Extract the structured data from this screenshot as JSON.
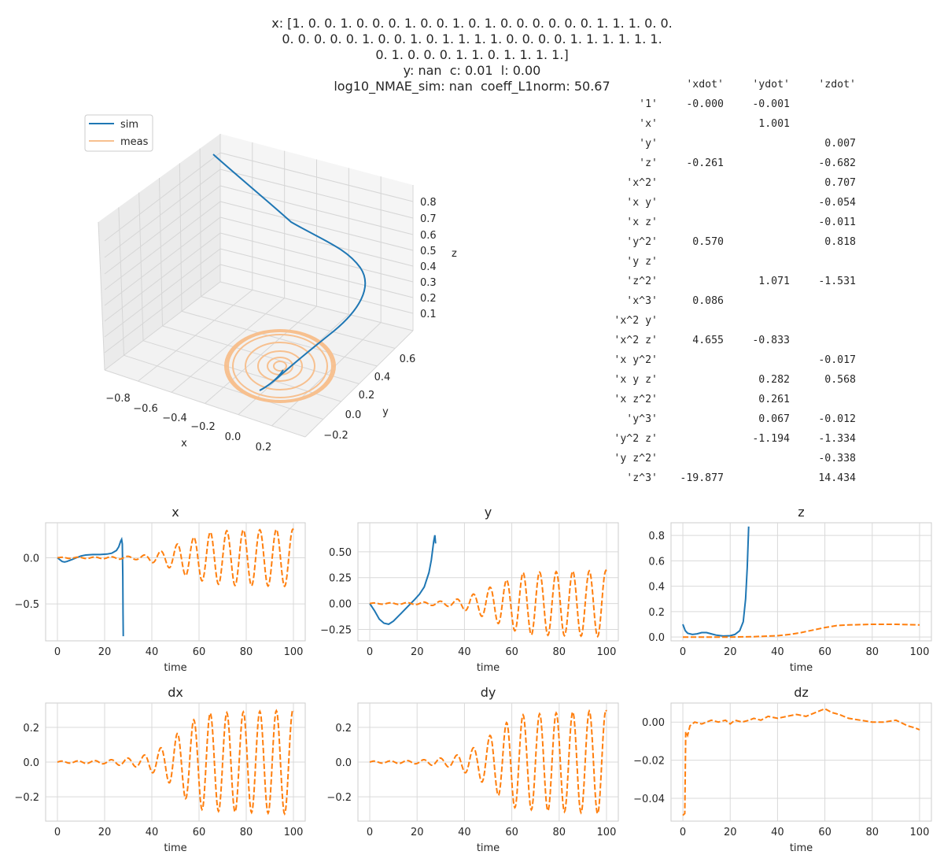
{
  "title": {
    "lines": [
      "x: [1. 0. 0. 1. 0. 0. 0. 1. 0. 0. 1. 0. 1. 0. 0. 0. 0. 0. 0. 1. 1. 1. 0. 0.",
      "0. 0. 0. 0. 0. 1. 0. 0. 1. 0. 1. 1. 1. 1. 0. 0. 0. 0. 1. 1. 1. 1. 1. 1.",
      "0. 1. 0. 0. 0. 1. 1. 0. 1. 1. 1. 1.]",
      "y: nan  c: 0.01  l: 0.00",
      "log10_NMAE_sim: nan  coeff_L1norm: 50.67"
    ]
  },
  "coef_table": {
    "columns": [
      "'xdot'",
      "'ydot'",
      "'zdot'"
    ],
    "rows": [
      {
        "term": "'1'",
        "vals": [
          "-0.000",
          "-0.001",
          ""
        ]
      },
      {
        "term": "'x'",
        "vals": [
          "",
          "1.001",
          ""
        ]
      },
      {
        "term": "'y'",
        "vals": [
          "",
          "",
          "0.007"
        ]
      },
      {
        "term": "'z'",
        "vals": [
          "-0.261",
          "",
          "-0.682"
        ]
      },
      {
        "term": "'x^2'",
        "vals": [
          "",
          "",
          "0.707"
        ]
      },
      {
        "term": "'x y'",
        "vals": [
          "",
          "",
          "-0.054"
        ]
      },
      {
        "term": "'x z'",
        "vals": [
          "",
          "",
          "-0.011"
        ]
      },
      {
        "term": "'y^2'",
        "vals": [
          "0.570",
          "",
          "0.818"
        ]
      },
      {
        "term": "'y z'",
        "vals": [
          "",
          "",
          ""
        ]
      },
      {
        "term": "'z^2'",
        "vals": [
          "",
          "1.071",
          "-1.531"
        ]
      },
      {
        "term": "'x^3'",
        "vals": [
          "0.086",
          "",
          ""
        ]
      },
      {
        "term": "'x^2 y'",
        "vals": [
          "",
          "",
          ""
        ]
      },
      {
        "term": "'x^2 z'",
        "vals": [
          "4.655",
          "-0.833",
          ""
        ]
      },
      {
        "term": "'x y^2'",
        "vals": [
          "",
          "",
          "-0.017"
        ]
      },
      {
        "term": "'x y z'",
        "vals": [
          "",
          "0.282",
          "0.568"
        ]
      },
      {
        "term": "'x z^2'",
        "vals": [
          "",
          "0.261",
          ""
        ]
      },
      {
        "term": "'y^3'",
        "vals": [
          "",
          "0.067",
          "-0.012"
        ]
      },
      {
        "term": "'y^2 z'",
        "vals": [
          "",
          "-1.194",
          "-1.334"
        ]
      },
      {
        "term": "'y z^2'",
        "vals": [
          "",
          "",
          "-0.338"
        ]
      },
      {
        "term": "'z^3'",
        "vals": [
          "-19.877",
          "",
          "14.434"
        ]
      }
    ]
  },
  "plot3d": {
    "legend": [
      "sim",
      "meas"
    ],
    "xlabel": "x",
    "ylabel": "y",
    "zlabel": "z",
    "xticks": [
      "−0.8",
      "−0.6",
      "−0.4",
      "−0.2",
      "0.0",
      "0.2"
    ],
    "yticks": [
      "−0.2",
      "0.0",
      "0.2",
      "0.4",
      "0.6"
    ],
    "zticks": [
      "0.1",
      "0.2",
      "0.3",
      "0.4",
      "0.5",
      "0.6",
      "0.7",
      "0.8"
    ]
  },
  "colors": {
    "sim": "#1f77b4",
    "meas": "#ff7f0e",
    "meas3d": "#f7c08f",
    "grid": "#d9d9d9"
  },
  "chart_data": [
    {
      "type": "line",
      "title": "x",
      "xlabel": "time",
      "ylabel": "",
      "xlim": [
        -5,
        105
      ],
      "ylim": [
        -0.9,
        0.38
      ],
      "xticks": [
        0,
        20,
        40,
        60,
        80,
        100
      ],
      "yticks": [
        -0.5,
        0.0
      ],
      "series": [
        {
          "name": "sim",
          "style": "solid",
          "points": [
            [
              0,
              0
            ],
            [
              1,
              -0.02
            ],
            [
              2,
              -0.04
            ],
            [
              3,
              -0.045
            ],
            [
              4,
              -0.04
            ],
            [
              6,
              -0.02
            ],
            [
              8,
              0.0
            ],
            [
              10,
              0.02
            ],
            [
              12,
              0.03
            ],
            [
              15,
              0.035
            ],
            [
              18,
              0.035
            ],
            [
              21,
              0.04
            ],
            [
              23,
              0.05
            ],
            [
              25,
              0.08
            ],
            [
              26,
              0.12
            ],
            [
              26.8,
              0.18
            ],
            [
              27.2,
              0.2
            ],
            [
              27.5,
              0.15
            ],
            [
              27.7,
              -0.2
            ],
            [
              27.8,
              -0.6
            ],
            [
              27.9,
              -0.85
            ]
          ]
        },
        {
          "name": "meas",
          "style": "dashed",
          "osc": {
            "t_end": 100,
            "base": 0.0,
            "period": 7,
            "amp": [
              [
                0,
                0.005
              ],
              [
                20,
                0.01
              ],
              [
                35,
                0.02
              ],
              [
                45,
                0.08
              ],
              [
                55,
                0.2
              ],
              [
                65,
                0.28
              ],
              [
                75,
                0.3
              ],
              [
                100,
                0.31
              ]
            ]
          }
        }
      ]
    },
    {
      "type": "line",
      "title": "y",
      "xlabel": "time",
      "ylabel": "",
      "xlim": [
        -5,
        105
      ],
      "ylim": [
        -0.36,
        0.78
      ],
      "xticks": [
        0,
        20,
        40,
        60,
        80,
        100
      ],
      "yticks": [
        -0.25,
        0.0,
        0.25,
        0.5
      ],
      "series": [
        {
          "name": "sim",
          "style": "solid",
          "points": [
            [
              0,
              0
            ],
            [
              2,
              -0.07
            ],
            [
              4,
              -0.15
            ],
            [
              6,
              -0.19
            ],
            [
              8,
              -0.2
            ],
            [
              10,
              -0.17
            ],
            [
              13,
              -0.1
            ],
            [
              16,
              -0.03
            ],
            [
              19,
              0.04
            ],
            [
              21,
              0.09
            ],
            [
              23,
              0.16
            ],
            [
              25,
              0.3
            ],
            [
              26,
              0.42
            ],
            [
              27,
              0.6
            ],
            [
              27.5,
              0.66
            ],
            [
              27.8,
              0.58
            ]
          ]
        },
        {
          "name": "meas",
          "style": "dashed",
          "osc": {
            "t_end": 100,
            "base": 0.0,
            "period": 7,
            "amp": [
              [
                0,
                0.005
              ],
              [
                20,
                0.01
              ],
              [
                35,
                0.03
              ],
              [
                45,
                0.1
              ],
              [
                55,
                0.2
              ],
              [
                65,
                0.3
              ],
              [
                100,
                0.32
              ]
            ]
          }
        }
      ]
    },
    {
      "type": "line",
      "title": "z",
      "xlabel": "time",
      "ylabel": "",
      "xlim": [
        -5,
        105
      ],
      "ylim": [
        -0.03,
        0.9
      ],
      "xticks": [
        0,
        20,
        40,
        60,
        80,
        100
      ],
      "yticks": [
        0.0,
        0.2,
        0.4,
        0.6,
        0.8
      ],
      "series": [
        {
          "name": "sim",
          "style": "solid",
          "points": [
            [
              0,
              0.1
            ],
            [
              1,
              0.05
            ],
            [
              2,
              0.03
            ],
            [
              4,
              0.02
            ],
            [
              6,
              0.025
            ],
            [
              8,
              0.035
            ],
            [
              10,
              0.035
            ],
            [
              12,
              0.025
            ],
            [
              14,
              0.015
            ],
            [
              17,
              0.008
            ],
            [
              20,
              0.01
            ],
            [
              22,
              0.02
            ],
            [
              24,
              0.05
            ],
            [
              25.5,
              0.12
            ],
            [
              26.5,
              0.3
            ],
            [
              27.2,
              0.55
            ],
            [
              27.8,
              0.87
            ]
          ]
        },
        {
          "name": "meas",
          "style": "dashed",
          "points": [
            [
              0,
              0.0
            ],
            [
              20,
              0.0
            ],
            [
              30,
              0.003
            ],
            [
              40,
              0.01
            ],
            [
              45,
              0.02
            ],
            [
              50,
              0.035
            ],
            [
              55,
              0.055
            ],
            [
              60,
              0.075
            ],
            [
              65,
              0.09
            ],
            [
              70,
              0.095
            ],
            [
              80,
              0.1
            ],
            [
              90,
              0.1
            ],
            [
              95,
              0.098
            ],
            [
              100,
              0.095
            ]
          ]
        }
      ]
    },
    {
      "type": "line",
      "title": "dx",
      "xlabel": "time",
      "ylabel": "",
      "xlim": [
        -5,
        105
      ],
      "ylim": [
        -0.34,
        0.34
      ],
      "xticks": [
        0,
        20,
        40,
        60,
        80,
        100
      ],
      "yticks": [
        -0.2,
        0.0,
        0.2
      ],
      "series": [
        {
          "name": "meas",
          "style": "dashed",
          "osc": {
            "t_end": 100,
            "base": 0.0,
            "period": 7,
            "amp": [
              [
                0,
                0.005
              ],
              [
                20,
                0.01
              ],
              [
                35,
                0.03
              ],
              [
                45,
                0.09
              ],
              [
                55,
                0.22
              ],
              [
                62,
                0.28
              ],
              [
                100,
                0.3
              ]
            ]
          }
        }
      ]
    },
    {
      "type": "line",
      "title": "dy",
      "xlabel": "time",
      "ylabel": "",
      "xlim": [
        -5,
        105
      ],
      "ylim": [
        -0.34,
        0.34
      ],
      "xticks": [
        0,
        20,
        40,
        60,
        80,
        100
      ],
      "yticks": [
        -0.2,
        0.0,
        0.2
      ],
      "series": [
        {
          "name": "meas",
          "style": "dashed",
          "osc": {
            "t_end": 100,
            "base": 0.0,
            "period": 7,
            "amp": [
              [
                0,
                0.005
              ],
              [
                20,
                0.01
              ],
              [
                35,
                0.03
              ],
              [
                45,
                0.09
              ],
              [
                55,
                0.2
              ],
              [
                62,
                0.27
              ],
              [
                100,
                0.3
              ]
            ]
          }
        }
      ]
    },
    {
      "type": "line",
      "title": "dz",
      "xlabel": "time",
      "ylabel": "",
      "xlim": [
        -5,
        105
      ],
      "ylim": [
        -0.052,
        0.01
      ],
      "xticks": [
        0,
        20,
        40,
        60,
        80,
        100
      ],
      "yticks": [
        -0.04,
        -0.02,
        0.0
      ],
      "series": [
        {
          "name": "meas",
          "style": "dashed",
          "points": [
            [
              0,
              -0.049
            ],
            [
              0.8,
              -0.048
            ],
            [
              1.2,
              -0.005
            ],
            [
              2,
              -0.007
            ],
            [
              3,
              -0.002
            ],
            [
              5,
              0.0
            ],
            [
              8,
              -0.001
            ],
            [
              12,
              0.001
            ],
            [
              15,
              0.0
            ],
            [
              18,
              0.001
            ],
            [
              20,
              -0.001
            ],
            [
              22,
              0.001
            ],
            [
              25,
              0.0
            ],
            [
              28,
              0.001
            ],
            [
              30,
              0.002
            ],
            [
              33,
              0.001
            ],
            [
              36,
              0.003
            ],
            [
              40,
              0.002
            ],
            [
              44,
              0.003
            ],
            [
              48,
              0.004
            ],
            [
              52,
              0.003
            ],
            [
              56,
              0.005
            ],
            [
              60,
              0.007
            ],
            [
              63,
              0.005
            ],
            [
              66,
              0.004
            ],
            [
              70,
              0.002
            ],
            [
              75,
              0.001
            ],
            [
              80,
              0.0
            ],
            [
              85,
              0.0
            ],
            [
              90,
              0.001
            ],
            [
              95,
              -0.002
            ],
            [
              98,
              -0.003
            ],
            [
              100,
              -0.004
            ]
          ]
        }
      ]
    }
  ]
}
